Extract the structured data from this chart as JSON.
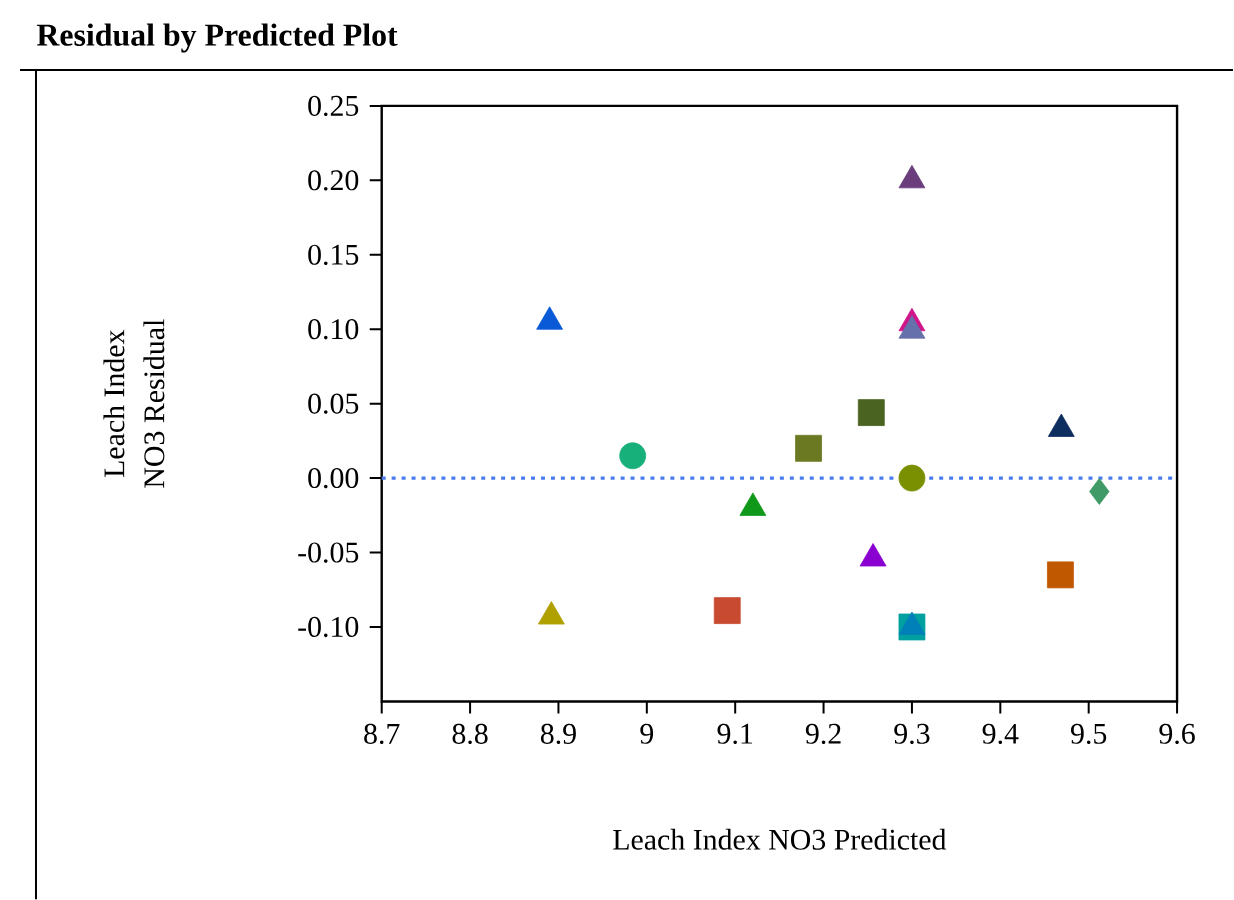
{
  "chart_data": {
    "type": "scatter",
    "title": "Residual by Predicted Plot",
    "xlabel": "Leach Index NO3 Predicted",
    "ylabel": "Leach Index\nNO3 Residual",
    "xlim": [
      8.7,
      9.6
    ],
    "xticks": [
      8.7,
      8.8,
      8.9,
      9,
      9.1,
      9.2,
      9.3,
      9.4,
      9.5,
      9.6
    ],
    "ylim": [
      -0.15,
      0.25
    ],
    "yticks": [
      {
        "value": 0.25,
        "label": "0.25"
      },
      {
        "value": 0.2,
        "label": "0.20"
      },
      {
        "value": 0.15,
        "label": "0.15"
      },
      {
        "value": 0.1,
        "label": "0.10"
      },
      {
        "value": 0.05,
        "label": "0.05"
      },
      {
        "value": 0,
        "label": "0.00"
      },
      {
        "value": -0.05,
        "label": "-0.05"
      },
      {
        "value": -0.1,
        "label": "-0.10"
      }
    ],
    "grid": false,
    "ref_lines": [
      {
        "axis": "y",
        "value": 0,
        "color": "#4a7cf0",
        "line_style": "dotted"
      }
    ],
    "series": [
      {
        "x": [
          8.89
        ],
        "values": [
          0.105
        ],
        "color": "#0a5ad8",
        "marker": "triangle"
      },
      {
        "x": [
          9.3
        ],
        "values": [
          0.2
        ],
        "color": "#6a3d7c",
        "marker": "triangle"
      },
      {
        "x": [
          9.3
        ],
        "values": [
          0.104
        ],
        "color": "#d0158a",
        "marker": "triangle"
      },
      {
        "x": [
          9.3
        ],
        "values": [
          0.099
        ],
        "color": "#6670aa",
        "marker": "triangle"
      },
      {
        "x": [
          9.254
        ],
        "values": [
          0.044
        ],
        "color": "#4a6320",
        "marker": "square"
      },
      {
        "x": [
          9.469
        ],
        "values": [
          0.033
        ],
        "color": "#0f2e60",
        "marker": "triangle"
      },
      {
        "x": [
          8.984
        ],
        "values": [
          0.015
        ],
        "color": "#18b07a",
        "marker": "circle"
      },
      {
        "x": [
          9.183
        ],
        "values": [
          0.02
        ],
        "color": "#6b7a22",
        "marker": "square"
      },
      {
        "x": [
          9.3
        ],
        "values": [
          0.0
        ],
        "color": "#7a9000",
        "marker": "circle"
      },
      {
        "x": [
          9.512
        ],
        "values": [
          -0.009
        ],
        "color": "#3f9a68",
        "marker": "diamond"
      },
      {
        "x": [
          9.12
        ],
        "values": [
          -0.02
        ],
        "color": "#10981a",
        "marker": "triangle"
      },
      {
        "x": [
          9.256
        ],
        "values": [
          -0.054
        ],
        "color": "#8a00d0",
        "marker": "triangle"
      },
      {
        "x": [
          9.468
        ],
        "values": [
          -0.065
        ],
        "color": "#c05800",
        "marker": "square"
      },
      {
        "x": [
          9.091
        ],
        "values": [
          -0.089
        ],
        "color": "#c84a30",
        "marker": "square"
      },
      {
        "x": [
          8.892
        ],
        "values": [
          -0.093
        ],
        "color": "#b0a000",
        "marker": "triangle"
      },
      {
        "x": [
          9.3
        ],
        "values": [
          -0.1
        ],
        "color": "#00a0a0",
        "marker": "square"
      },
      {
        "x": [
          9.3
        ],
        "values": [
          -0.1
        ],
        "color": "#0080b8",
        "marker": "triangle"
      }
    ]
  }
}
